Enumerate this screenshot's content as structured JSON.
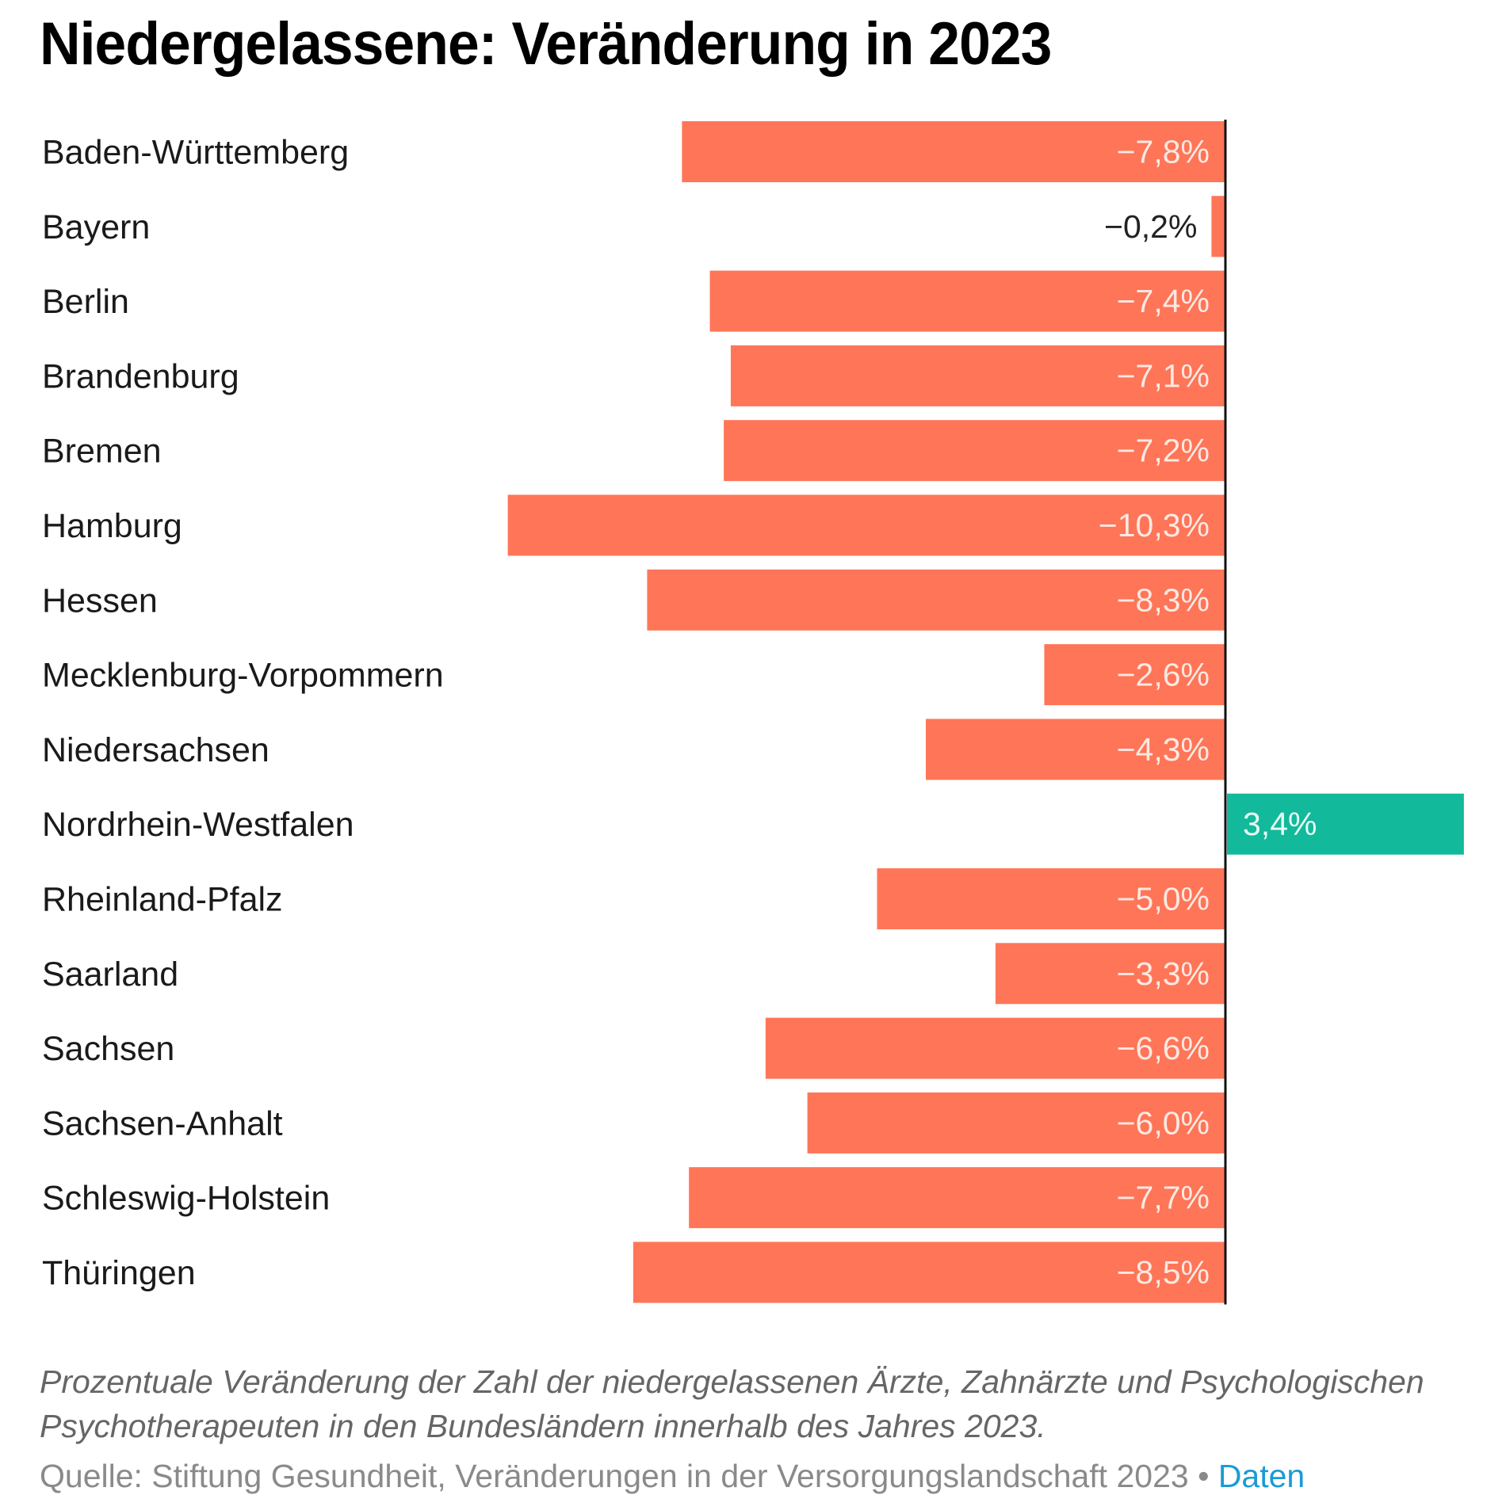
{
  "title": "Niedergelassene: Veränderung in 2023",
  "caption": "Prozentuale Veränderung der Zahl der niedergelassenen Ärzte, Zahnärzte und Psychologischen Psychotherapeuten in den Bundesländern innerhalb des Jahres 2023.",
  "source": {
    "text": "Quelle: Stiftung Gesundheit, Veränderungen in der Versorgungslandschaft 2023",
    "separator": " • ",
    "link_label": "Daten"
  },
  "colors": {
    "negative": "#ff7558",
    "positive": "#12b99a",
    "axis": "#111111",
    "label_inside": "#fde9e2",
    "label_outside": "#222222",
    "label_positive": "#e6fbf6"
  },
  "chart_data": {
    "type": "bar",
    "orientation": "horizontal",
    "title": "Niedergelassene: Veränderung in 2023",
    "xlabel": "",
    "ylabel": "",
    "unit": "%",
    "xlim": [
      -10.3,
      3.4
    ],
    "grid": false,
    "legend": null,
    "categories": [
      "Baden-Württemberg",
      "Bayern",
      "Berlin",
      "Brandenburg",
      "Bremen",
      "Hamburg",
      "Hessen",
      "Mecklenburg-Vorpommern",
      "Niedersachsen",
      "Nordrhein-Westfalen",
      "Rheinland-Pfalz",
      "Saarland",
      "Sachsen",
      "Sachsen-Anhalt",
      "Schleswig-Holstein",
      "Thüringen"
    ],
    "values": [
      -7.8,
      -0.2,
      -7.4,
      -7.1,
      -7.2,
      -10.3,
      -8.3,
      -2.6,
      -4.3,
      3.4,
      -5.0,
      -3.3,
      -6.6,
      -6.0,
      -7.7,
      -8.5
    ],
    "value_labels": [
      "−7,8%",
      "−0,2%",
      "−7,4%",
      "−7,1%",
      "−7,2%",
      "−10,3%",
      "−8,3%",
      "−2,6%",
      "−4,3%",
      "3,4%",
      "−5,0%",
      "−3,3%",
      "−6,6%",
      "−6,0%",
      "−7,7%",
      "−8,5%"
    ]
  }
}
